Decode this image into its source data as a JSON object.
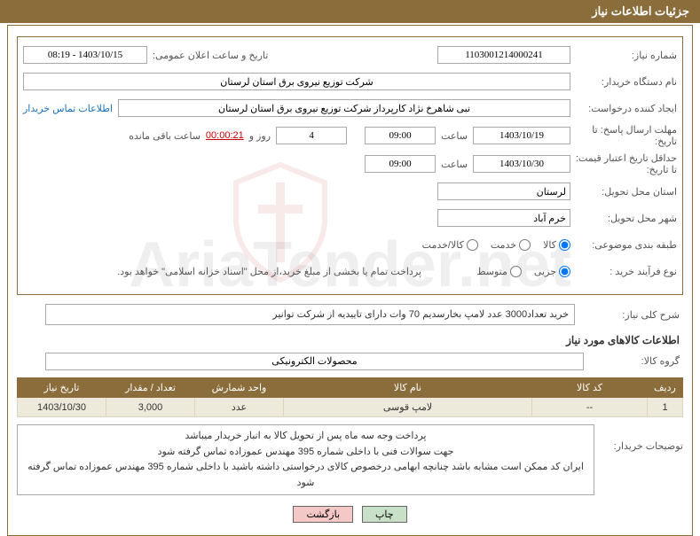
{
  "header": {
    "title": "جزئیات اطلاعات نیاز"
  },
  "fields": {
    "need_number_label": "شماره نیاز:",
    "need_number": "1103001214000241",
    "announce_datetime_label": "تاریخ و ساعت اعلان عمومی:",
    "announce_datetime": "1403/10/15 - 08:19",
    "buyer_org_label": "نام دستگاه خریدار:",
    "buyer_org": "شرکت توزیع نیروی برق استان لرستان",
    "requester_label": "ایجاد کننده درخواست:",
    "requester": "نبی شاهرخ نژاد کارپرداز شرکت توزیع نیروی برق استان لرستان",
    "contact_link": "اطلاعات تماس خریدار",
    "reply_deadline_label": "مهلت ارسال پاسخ: تا تاریخ:",
    "reply_deadline_date": "1403/10/19",
    "time_label": "ساعت",
    "reply_deadline_time": "09:00",
    "days_value": "4",
    "days_and_label": "روز و",
    "countdown": "00:00:21",
    "remaining_label": "ساعت باقی مانده",
    "price_validity_label": "حداقل تاریخ اعتبار قیمت: تا تاریخ:",
    "price_validity_date": "1403/10/30",
    "price_validity_time": "09:00",
    "delivery_province_label": "استان محل تحویل:",
    "delivery_province": "لرستان",
    "delivery_city_label": "شهر محل تحویل:",
    "delivery_city": "خرم آباد",
    "category_label": "طبقه بندی موضوعی:",
    "category_options": {
      "goods": "کالا",
      "service": "خدمت",
      "goods_service": "کالا/خدمت"
    },
    "process_type_label": "نوع فرآیند خرید :",
    "process_options": {
      "partial": "جزیی",
      "medium": "متوسط"
    },
    "payment_note": "پرداخت تمام یا بخشی از مبلغ خرید،از محل \"اسناد خزانه اسلامی\" خواهد بود."
  },
  "general_desc": {
    "label": "شرح کلی نیاز:",
    "text": "خرید تعداد3000 عدد لامپ بخارسدیم 70 وات دارای تاییدیه از شرکت توانیر"
  },
  "goods_section_title": "اطلاعات کالاهای مورد نیاز",
  "goods_group": {
    "label": "گروه کالا:",
    "value": "محصولات الکترونیکی"
  },
  "table": {
    "columns": [
      "ردیف",
      "کد کالا",
      "نام کالا",
      "واحد شمارش",
      "تعداد / مقدار",
      "تاریخ نیاز"
    ],
    "col_widths": [
      "40px",
      "130px",
      "auto",
      "100px",
      "100px",
      "100px"
    ],
    "rows": [
      [
        "1",
        "--",
        "لامپ قوسی",
        "عدد",
        "3,000",
        "1403/10/30"
      ]
    ]
  },
  "buyer_notes": {
    "label": "توضیحات خریدار:",
    "lines": [
      "پرداخت وجه سه ماه پس از تحویل کالا   به انبار خریدار میباشد",
      "جهت سوالات فنی با داخلی شماره 395 مهندس عموزاده تماس گرفته شود",
      "ایران کد ممکن است مشابه باشد چنانچه ابهامی درخصوص کالای درخواستی داشته باشید با داخلی شماره 395 مهندس عموزاده تماس گرفته شود"
    ]
  },
  "buttons": {
    "print": "چاپ",
    "back": "بازگشت"
  },
  "watermark": "AriaTender.net",
  "colors": {
    "header_bg": "#8a6d3b",
    "row_bg": "#eeeadb",
    "link": "#1a6fb8",
    "countdown": "#c00"
  }
}
